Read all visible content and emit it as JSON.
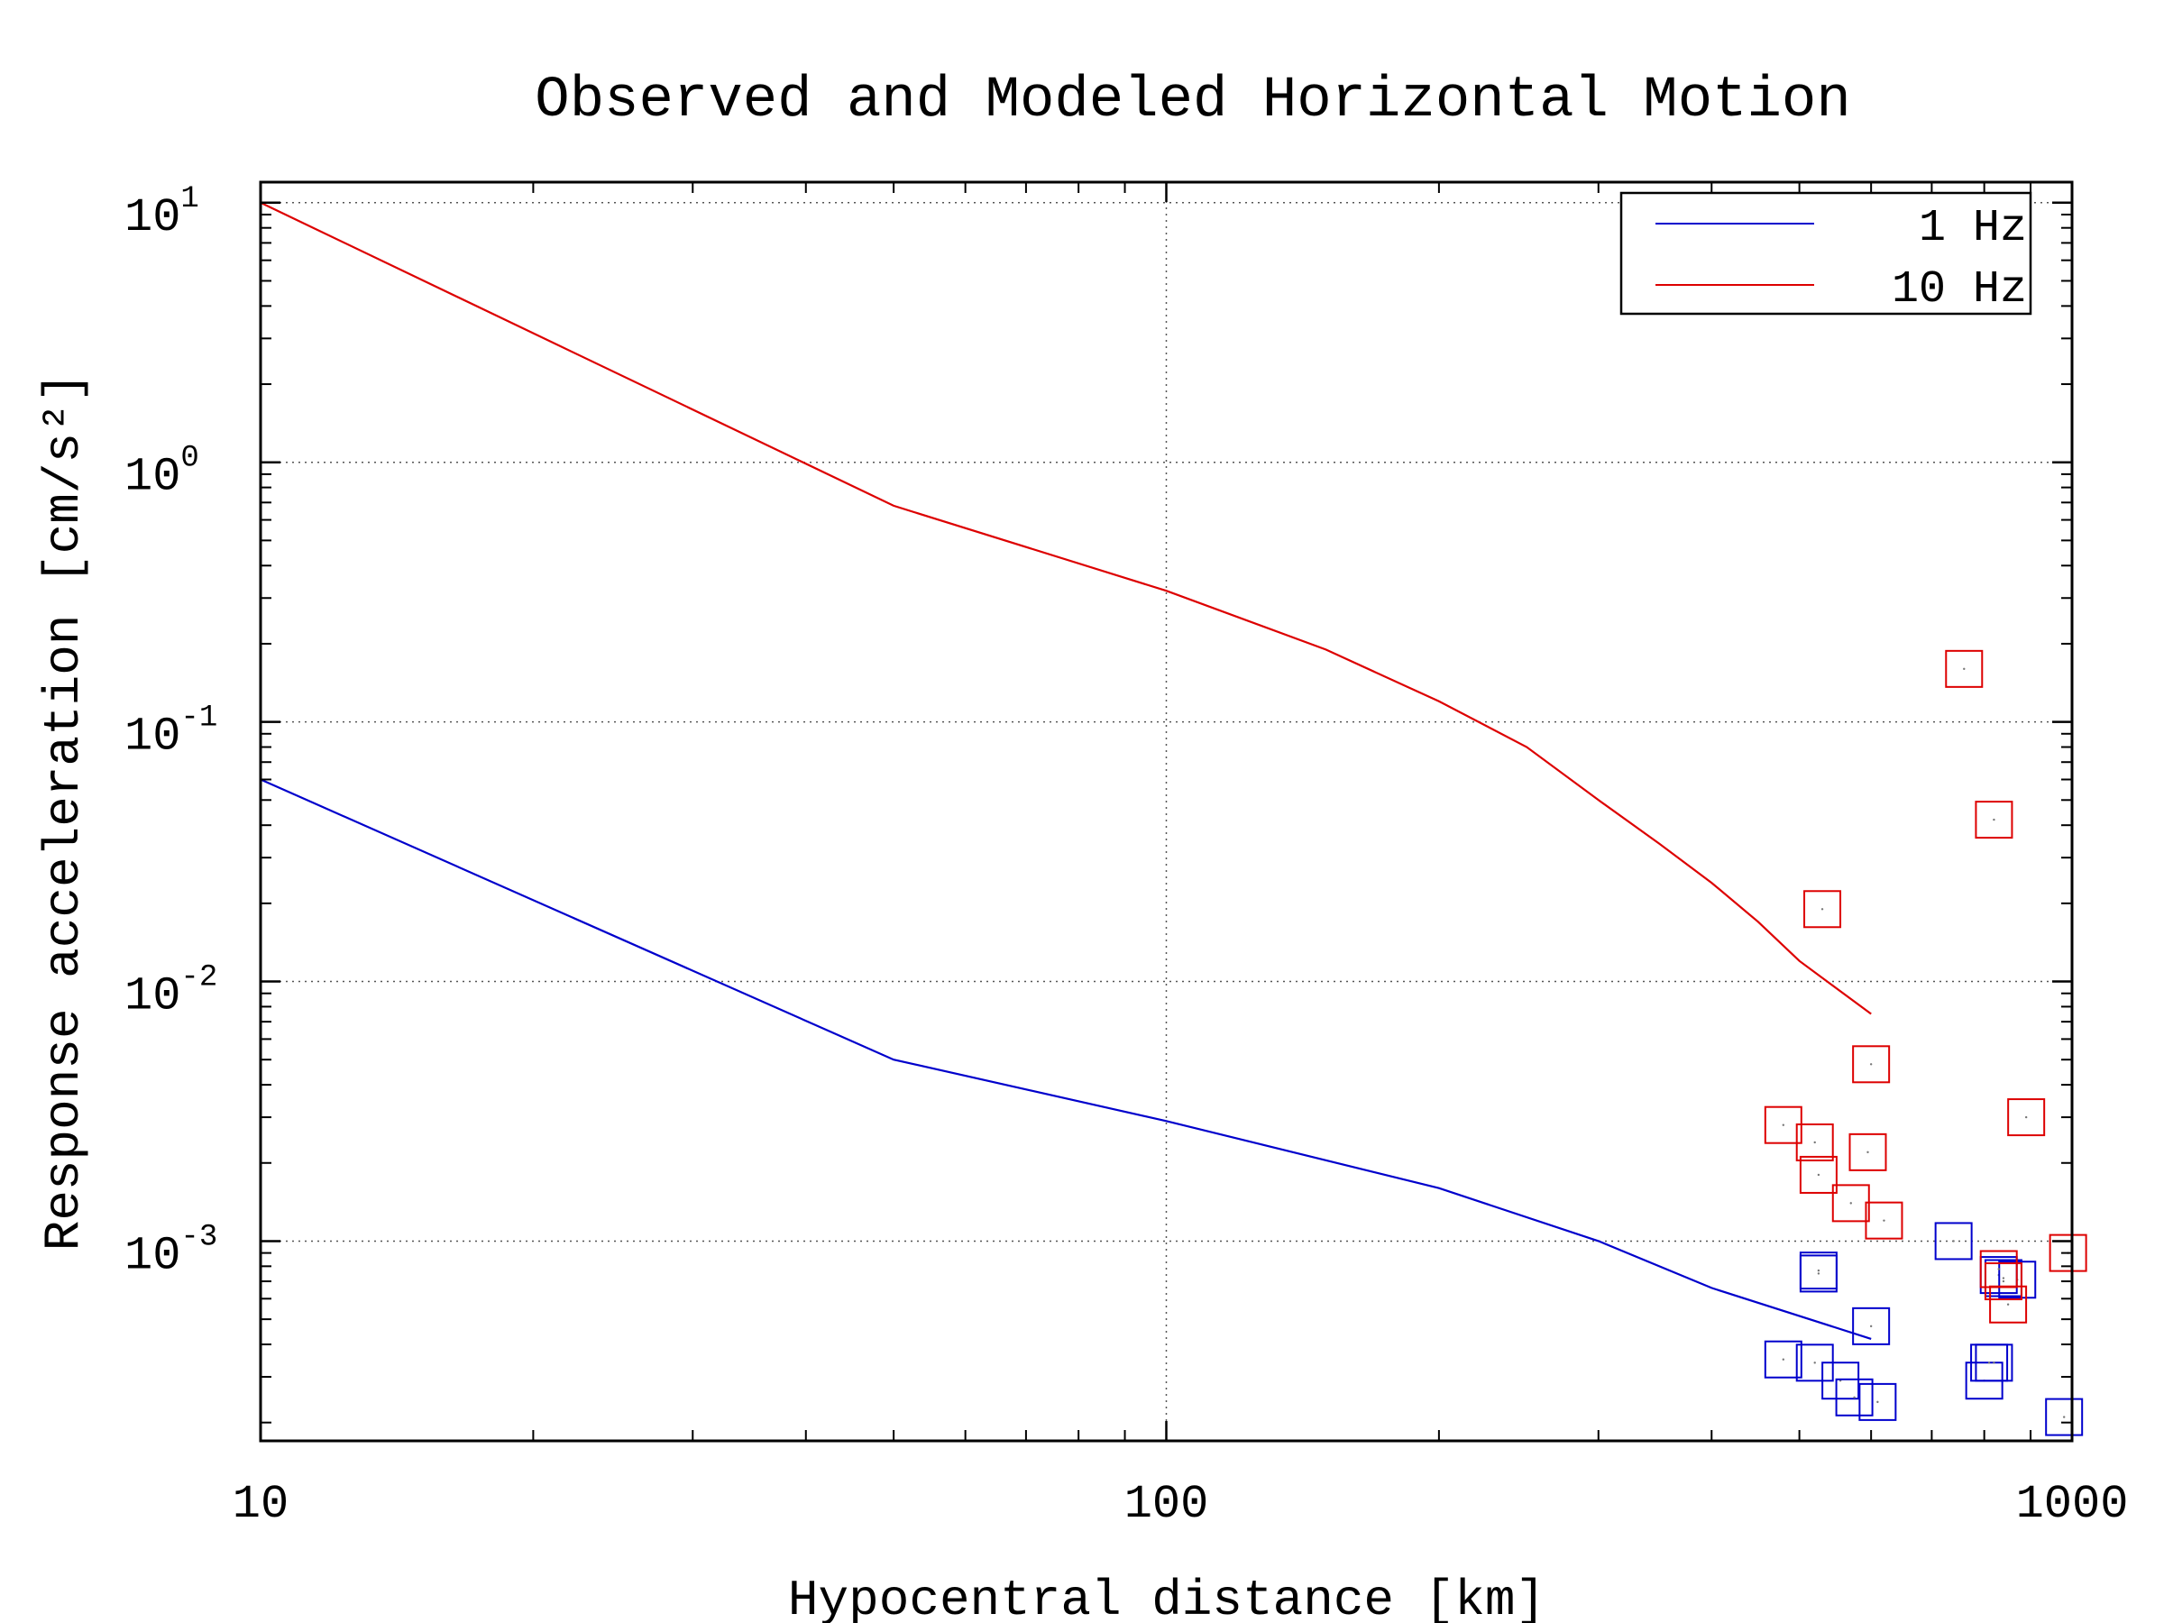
{
  "chart_data": {
    "type": "scatter",
    "title": "Observed and Modeled Horizontal Motion",
    "xlabel": "Hypocentral distance [km]",
    "ylabel": "Response acceleration [cm/s²]",
    "xscale": "log",
    "yscale": "log",
    "xlim": [
      10,
      1000
    ],
    "ylim": [
      0.00017,
      12
    ],
    "x_ticks": [
      {
        "value": 10,
        "label": "10"
      },
      {
        "value": 100,
        "label": "100"
      },
      {
        "value": 1000,
        "label": "1000"
      }
    ],
    "y_ticks": [
      {
        "value": 10,
        "base": "10",
        "exp": "1"
      },
      {
        "value": 1,
        "base": "10",
        "exp": "0"
      },
      {
        "value": 0.1,
        "base": "10",
        "exp": "-1"
      },
      {
        "value": 0.01,
        "base": "10",
        "exp": "-2"
      },
      {
        "value": 0.001,
        "base": "10",
        "exp": "-3"
      }
    ],
    "grid": true,
    "legend_position": "top-right",
    "legend": [
      {
        "label": "1 Hz",
        "color": "#0000cc"
      },
      {
        "label": "10 Hz",
        "color": "#dd0000"
      }
    ],
    "series": [
      {
        "name": "1 Hz",
        "kind": "line",
        "color": "#0000cc",
        "points": [
          [
            10,
            0.06
          ],
          [
            50,
            0.005
          ],
          [
            100,
            0.0029
          ],
          [
            200,
            0.0016
          ],
          [
            300,
            0.001
          ],
          [
            400,
            0.00066
          ],
          [
            600,
            0.00042
          ]
        ]
      },
      {
        "name": "10 Hz",
        "kind": "line",
        "color": "#dd0000",
        "points": [
          [
            10,
            10
          ],
          [
            50,
            0.68
          ],
          [
            100,
            0.32
          ],
          [
            150,
            0.19
          ],
          [
            200,
            0.12
          ],
          [
            250,
            0.08
          ],
          [
            300,
            0.05
          ],
          [
            350,
            0.034
          ],
          [
            400,
            0.024
          ],
          [
            450,
            0.017
          ],
          [
            500,
            0.012
          ],
          [
            600,
            0.0075
          ]
        ]
      },
      {
        "name": "1 Hz",
        "kind": "markers",
        "color": "#0000cc",
        "points": [
          [
            480,
            0.00035
          ],
          [
            520,
            0.00034
          ],
          [
            525,
            0.00077
          ],
          [
            525,
            0.00075
          ],
          [
            555,
            0.00029
          ],
          [
            575,
            0.00025
          ],
          [
            600,
            0.00047
          ],
          [
            610,
            0.00024
          ],
          [
            740,
            0.001
          ],
          [
            800,
            0.00029
          ],
          [
            810,
            0.00034
          ],
          [
            820,
            0.00034
          ],
          [
            830,
            0.00074
          ],
          [
            840,
            0.00072
          ],
          [
            870,
            0.00071
          ],
          [
            980,
            0.00021
          ]
        ]
      },
      {
        "name": "10 Hz",
        "kind": "markers",
        "color": "#dd0000",
        "points": [
          [
            480,
            0.0028
          ],
          [
            520,
            0.0024
          ],
          [
            525,
            0.0018
          ],
          [
            530,
            0.019
          ],
          [
            570,
            0.0014
          ],
          [
            595,
            0.0022
          ],
          [
            600,
            0.0048
          ],
          [
            620,
            0.0012
          ],
          [
            760,
            0.16
          ],
          [
            820,
            0.042
          ],
          [
            830,
            0.00078
          ],
          [
            840,
            0.0007
          ],
          [
            850,
            0.00057
          ],
          [
            890,
            0.003
          ],
          [
            990,
            0.0009
          ]
        ]
      }
    ]
  }
}
